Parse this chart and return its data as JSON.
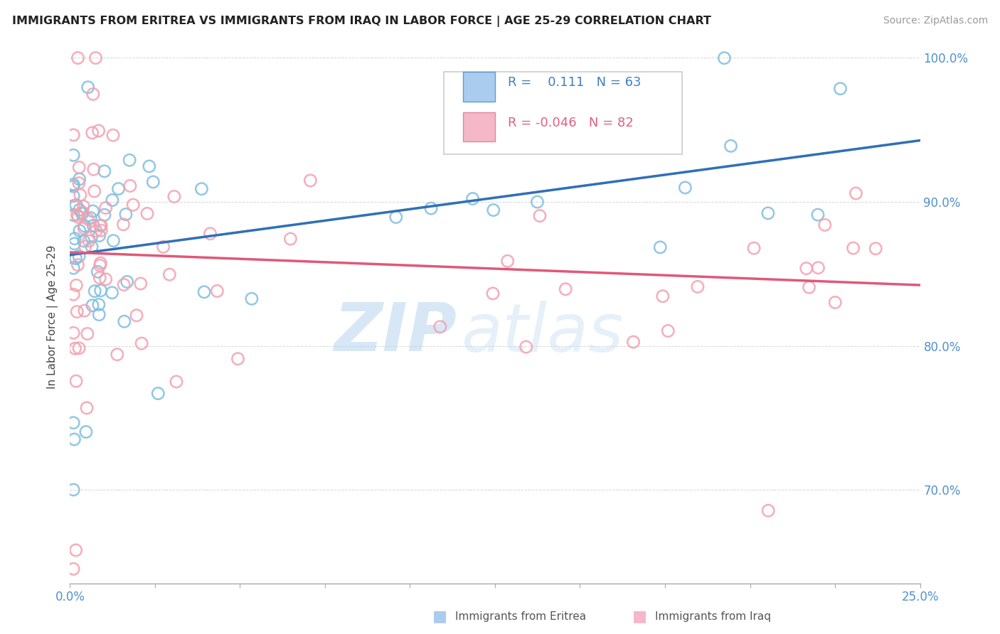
{
  "title": "IMMIGRANTS FROM ERITREA VS IMMIGRANTS FROM IRAQ IN LABOR FORCE | AGE 25-29 CORRELATION CHART",
  "source": "Source: ZipAtlas.com",
  "ylabel": "In Labor Force | Age 25-29",
  "legend_v1": "0.111",
  "legend_n1": "N = 63",
  "legend_v2": "-0.046",
  "legend_n2": "N = 82",
  "color_eritrea": "#7fbfdf",
  "color_iraq": "#f4a0b0",
  "color_line_eritrea": "#3070b8",
  "color_line_iraq": "#e05878",
  "color_dashed": "#aaaaaa",
  "background_color": "#ffffff",
  "watermark_zip": "ZIP",
  "watermark_atlas": "atlas",
  "xmin": 0.0,
  "xmax": 0.25,
  "ymin": 0.635,
  "ymax": 1.005,
  "yticks": [
    0.7,
    0.8,
    0.9,
    1.0
  ],
  "ytick_labels": [
    "70.0%",
    "80.0%",
    "90.0%",
    "100.0%"
  ],
  "eritrea_intercept": 0.871,
  "eritrea_slope": 0.22,
  "iraq_intercept": 0.864,
  "iraq_slope": -0.085
}
